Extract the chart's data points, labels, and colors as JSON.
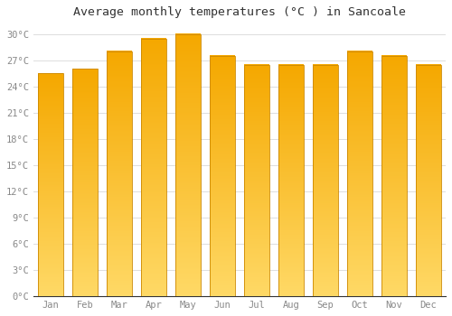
{
  "title": "Average monthly temperatures (°C ) in Sancoale",
  "months": [
    "Jan",
    "Feb",
    "Mar",
    "Apr",
    "May",
    "Jun",
    "Jul",
    "Aug",
    "Sep",
    "Oct",
    "Nov",
    "Dec"
  ],
  "values": [
    25.5,
    26.0,
    28.0,
    29.5,
    30.0,
    27.5,
    26.5,
    26.5,
    26.5,
    28.0,
    27.5,
    26.5
  ],
  "bar_color_top": "#F5A800",
  "bar_color_bottom": "#FFD966",
  "bar_edge_color": "#CC8800",
  "background_color": "#FFFFFF",
  "plot_bg_color": "#FFFFFF",
  "grid_color": "#DDDDDD",
  "ylim": [
    0,
    31
  ],
  "yticks": [
    0,
    3,
    6,
    9,
    12,
    15,
    18,
    21,
    24,
    27,
    30
  ],
  "title_fontsize": 9.5,
  "tick_fontsize": 7.5,
  "tick_color": "#888888"
}
